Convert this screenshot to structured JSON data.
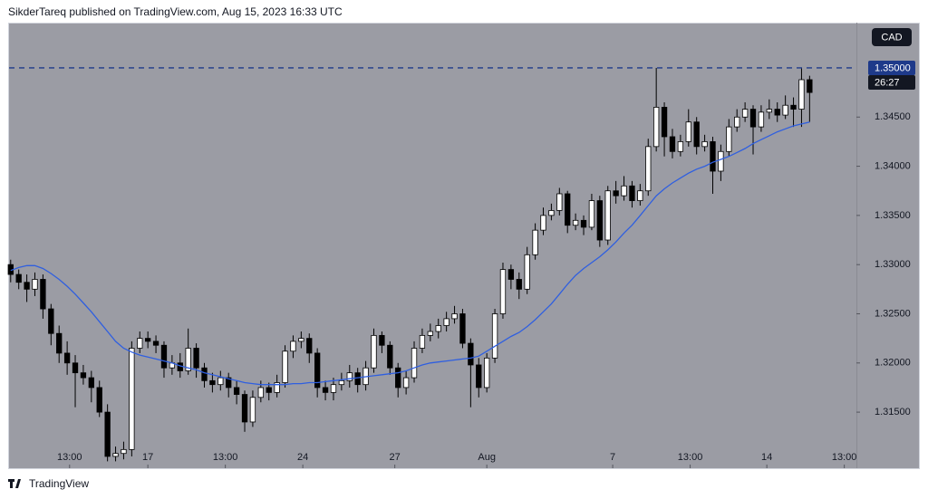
{
  "header": {
    "title": "SikderTareq published on TradingView.com, Aug 15, 2023 16:33 UTC"
  },
  "footer": {
    "brand": "TradingView"
  },
  "chart_data": {
    "type": "candlestick",
    "currency": "CAD",
    "countdown": "26:27",
    "grid": false,
    "ylim": [
      1.3093,
      1.3546
    ],
    "xlim": [
      -0.2,
      104.8
    ],
    "price_line": {
      "value": 1.35,
      "label": "1.35000",
      "color": "#1e3a8a"
    },
    "yticks": [
      {
        "value": 1.315,
        "label": "1.31500"
      },
      {
        "value": 1.32,
        "label": "1.32000"
      },
      {
        "value": 1.325,
        "label": "1.32500"
      },
      {
        "value": 1.33,
        "label": "1.33000"
      },
      {
        "value": 1.335,
        "label": "1.33500"
      },
      {
        "value": 1.34,
        "label": "1.34000"
      },
      {
        "value": 1.345,
        "label": "1.34500"
      }
    ],
    "xticks": [
      {
        "value": 7.3,
        "label": "13:00"
      },
      {
        "value": 17.0,
        "label": "17"
      },
      {
        "value": 26.6,
        "label": "13:00"
      },
      {
        "value": 36.2,
        "label": "24"
      },
      {
        "value": 47.6,
        "label": "27"
      },
      {
        "value": 59.0,
        "label": "Aug"
      },
      {
        "value": 74.6,
        "label": "7"
      },
      {
        "value": 84.2,
        "label": "13:00"
      },
      {
        "value": 93.7,
        "label": "14"
      },
      {
        "value": 103.3,
        "label": "13:00"
      }
    ],
    "up_color": "#ffffff",
    "down_color": "#000000",
    "wick_color": "#000000",
    "open": [
      1.33,
      1.329,
      1.3282,
      1.3275,
      1.3285,
      1.3255,
      1.323,
      1.321,
      1.32,
      1.319,
      1.3185,
      1.3175,
      1.315,
      1.3105,
      1.3108,
      1.3112,
      1.3215,
      1.3225,
      1.3222,
      1.3218,
      1.3195,
      1.32,
      1.3192,
      1.3215,
      1.3195,
      1.3182,
      1.3178,
      1.3185,
      1.3175,
      1.3168,
      1.314,
      1.3165,
      1.3175,
      1.317,
      1.318,
      1.3212,
      1.3222,
      1.3225,
      1.321,
      1.3175,
      1.317,
      1.3178,
      1.3182,
      1.319,
      1.3178,
      1.3195,
      1.3228,
      1.3218,
      1.3195,
      1.3175,
      1.3185,
      1.3215,
      1.3228,
      1.3232,
      1.3238,
      1.3245,
      1.325,
      1.322,
      1.3198,
      1.3175,
      1.3205,
      1.325,
      1.3295,
      1.3285,
      1.3275,
      1.331,
      1.3335,
      1.335,
      1.3355,
      1.3372,
      1.334,
      1.3345,
      1.3338,
      1.3365,
      1.3325,
      1.3375,
      1.337,
      1.338,
      1.3365,
      1.3375,
      1.342,
      1.346,
      1.343,
      1.3415,
      1.3425,
      1.3445,
      1.342,
      1.3425,
      1.3395,
      1.3415,
      1.344,
      1.345,
      1.3458,
      1.344,
      1.3455,
      1.3458,
      1.3452,
      1.3462,
      1.3458,
      1.3488
    ],
    "high": [
      1.3305,
      1.3295,
      1.329,
      1.3292,
      1.329,
      1.326,
      1.3238,
      1.3222,
      1.3208,
      1.3198,
      1.3192,
      1.3182,
      1.3158,
      1.3115,
      1.312,
      1.3222,
      1.3232,
      1.3232,
      1.3228,
      1.3222,
      1.3208,
      1.321,
      1.3235,
      1.322,
      1.32,
      1.319,
      1.3192,
      1.319,
      1.3182,
      1.3172,
      1.3172,
      1.3182,
      1.318,
      1.3188,
      1.3218,
      1.3228,
      1.3232,
      1.323,
      1.3215,
      1.3182,
      1.3185,
      1.319,
      1.3198,
      1.3195,
      1.3202,
      1.3235,
      1.3232,
      1.3222,
      1.32,
      1.3192,
      1.3222,
      1.3235,
      1.324,
      1.3245,
      1.3252,
      1.3258,
      1.3255,
      1.3225,
      1.3205,
      1.321,
      1.3255,
      1.3302,
      1.33,
      1.3292,
      1.3318,
      1.3342,
      1.3358,
      1.3362,
      1.3378,
      1.3375,
      1.3352,
      1.335,
      1.3372,
      1.337,
      1.338,
      1.3385,
      1.339,
      1.3385,
      1.3382,
      1.3428,
      1.35,
      1.3465,
      1.3438,
      1.3432,
      1.3458,
      1.345,
      1.3432,
      1.343,
      1.3422,
      1.3448,
      1.3458,
      1.3465,
      1.3462,
      1.3462,
      1.3468,
      1.3465,
      1.3472,
      1.347,
      1.35,
      1.3492
    ],
    "low": [
      1.3282,
      1.3275,
      1.3262,
      1.3268,
      1.3245,
      1.3218,
      1.32,
      1.3188,
      1.3155,
      1.3178,
      1.316,
      1.3145,
      1.31,
      1.31,
      1.3102,
      1.3105,
      1.321,
      1.3215,
      1.321,
      1.3185,
      1.3188,
      1.3185,
      1.3188,
      1.3185,
      1.3175,
      1.317,
      1.3172,
      1.3165,
      1.3158,
      1.313,
      1.3135,
      1.316,
      1.3162,
      1.3165,
      1.3175,
      1.3205,
      1.3215,
      1.32,
      1.3165,
      1.3162,
      1.3162,
      1.3172,
      1.3175,
      1.317,
      1.3172,
      1.319,
      1.321,
      1.3188,
      1.3165,
      1.3168,
      1.318,
      1.321,
      1.3222,
      1.3225,
      1.3232,
      1.324,
      1.3215,
      1.3155,
      1.3165,
      1.317,
      1.32,
      1.3245,
      1.3275,
      1.3265,
      1.327,
      1.3305,
      1.333,
      1.3345,
      1.335,
      1.3332,
      1.3335,
      1.333,
      1.3335,
      1.3318,
      1.332,
      1.3362,
      1.3365,
      1.3358,
      1.336,
      1.337,
      1.3415,
      1.341,
      1.3408,
      1.341,
      1.342,
      1.3412,
      1.3415,
      1.3372,
      1.3385,
      1.341,
      1.3435,
      1.3445,
      1.3412,
      1.3435,
      1.3448,
      1.3445,
      1.3448,
      1.344,
      1.344,
      1.3445
    ],
    "close": [
      1.329,
      1.3282,
      1.3275,
      1.3285,
      1.3255,
      1.323,
      1.321,
      1.32,
      1.319,
      1.3185,
      1.3175,
      1.315,
      1.3105,
      1.3108,
      1.3112,
      1.3215,
      1.3225,
      1.3222,
      1.3218,
      1.3195,
      1.32,
      1.3192,
      1.3215,
      1.3195,
      1.3182,
      1.3178,
      1.3185,
      1.3175,
      1.3168,
      1.314,
      1.3165,
      1.3175,
      1.317,
      1.318,
      1.3212,
      1.3222,
      1.3225,
      1.321,
      1.3175,
      1.317,
      1.3178,
      1.3182,
      1.319,
      1.3178,
      1.3195,
      1.3228,
      1.3218,
      1.3195,
      1.3175,
      1.3185,
      1.3215,
      1.3228,
      1.3232,
      1.3238,
      1.3245,
      1.325,
      1.322,
      1.3198,
      1.3175,
      1.3205,
      1.325,
      1.3295,
      1.3285,
      1.3275,
      1.331,
      1.3335,
      1.335,
      1.3355,
      1.3372,
      1.334,
      1.3345,
      1.3338,
      1.3365,
      1.3325,
      1.3375,
      1.337,
      1.338,
      1.3365,
      1.3375,
      1.342,
      1.346,
      1.343,
      1.3415,
      1.3425,
      1.3445,
      1.342,
      1.3425,
      1.3395,
      1.3415,
      1.344,
      1.345,
      1.3458,
      1.344,
      1.3455,
      1.3458,
      1.3452,
      1.3462,
      1.3458,
      1.3488,
      1.3475
    ],
    "moving_average": {
      "color": "#2f5fe0",
      "values": [
        1.3294,
        1.3297,
        1.3299,
        1.3299,
        1.3296,
        1.3291,
        1.3285,
        1.3278,
        1.327,
        1.3261,
        1.3252,
        1.3242,
        1.3232,
        1.3222,
        1.3215,
        1.3211,
        1.3208,
        1.3206,
        1.3204,
        1.3202,
        1.32,
        1.3197,
        1.3195,
        1.3193,
        1.319,
        1.3188,
        1.3186,
        1.3184,
        1.3182,
        1.318,
        1.3179,
        1.3178,
        1.3178,
        1.3178,
        1.3178,
        1.3179,
        1.3179,
        1.318,
        1.318,
        1.3181,
        1.3182,
        1.3183,
        1.3184,
        1.3185,
        1.3186,
        1.3187,
        1.3188,
        1.3189,
        1.319,
        1.3192,
        1.3195,
        1.3198,
        1.32,
        1.3201,
        1.3202,
        1.3203,
        1.3204,
        1.3205,
        1.3207,
        1.3212,
        1.3217,
        1.3222,
        1.3227,
        1.3231,
        1.3237,
        1.3244,
        1.3252,
        1.326,
        1.327,
        1.328,
        1.3289,
        1.3296,
        1.3302,
        1.3308,
        1.3315,
        1.3323,
        1.3332,
        1.334,
        1.335,
        1.336,
        1.337,
        1.3377,
        1.3383,
        1.3388,
        1.3393,
        1.3397,
        1.34,
        1.3404,
        1.3407,
        1.341,
        1.3414,
        1.3418,
        1.3423,
        1.3427,
        1.3431,
        1.3435,
        1.3438,
        1.3441,
        1.3443,
        1.3445
      ]
    }
  }
}
